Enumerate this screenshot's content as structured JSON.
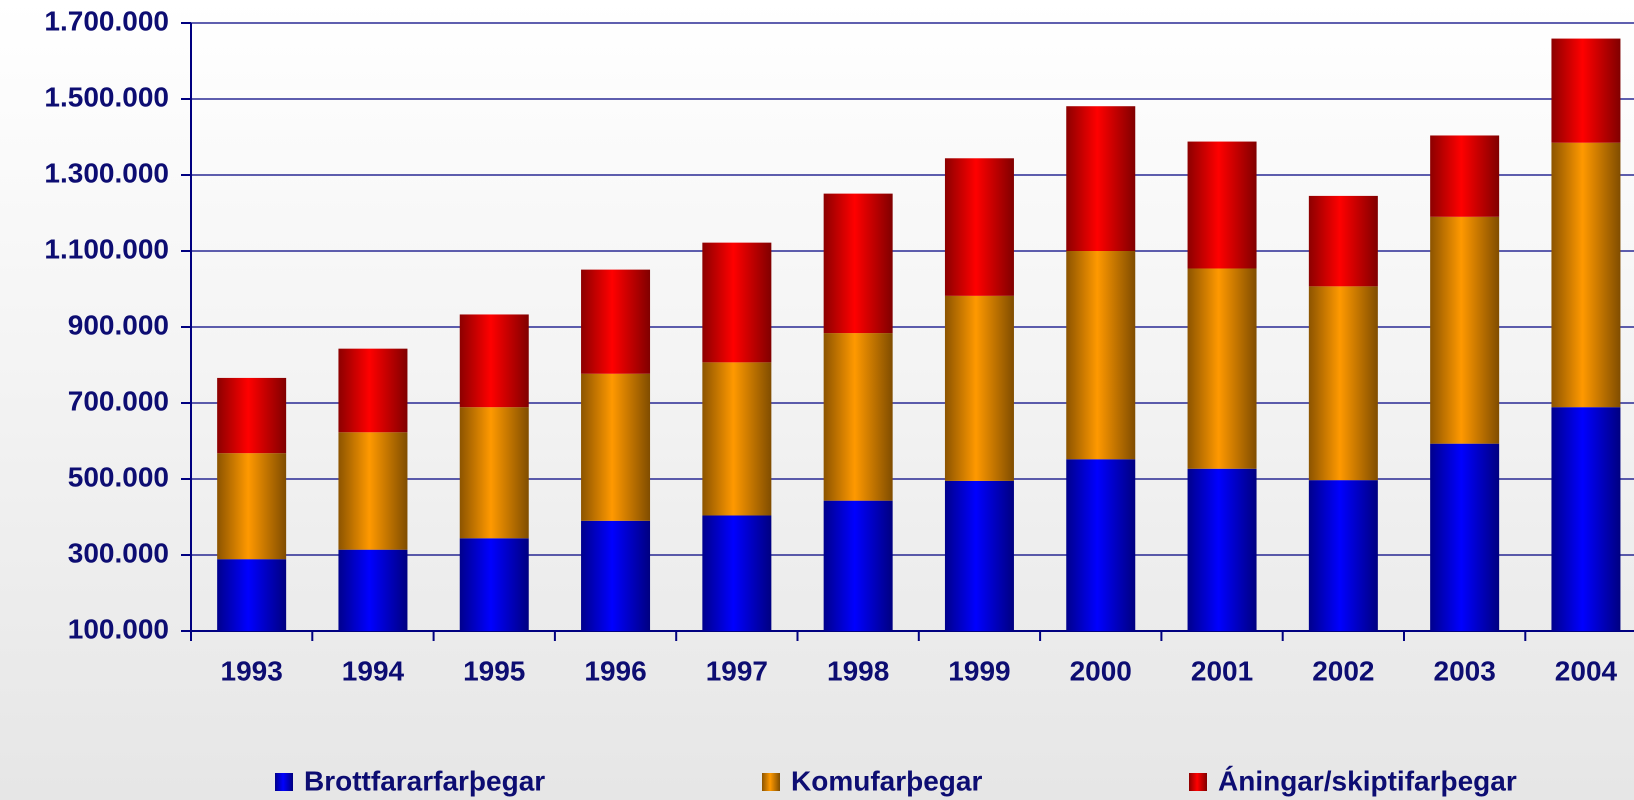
{
  "chart_data": {
    "type": "stacked_bar",
    "categories": [
      "1993",
      "1994",
      "1995",
      "1996",
      "1997",
      "1998",
      "1999",
      "2000",
      "2001",
      "2002",
      "2003",
      "2004"
    ],
    "series": [
      {
        "name": "Brottfararfarþegar",
        "color": "#0000ff",
        "values": [
          289000,
          314000,
          344000,
          390000,
          404000,
          443000,
          495000,
          552000,
          527000,
          497000,
          593000,
          689000
        ]
      },
      {
        "name": "Komufarþegar",
        "color": "#ff9900",
        "values": [
          279000,
          309000,
          345000,
          387000,
          403000,
          441000,
          487000,
          548000,
          527000,
          510000,
          597000,
          696000
        ]
      },
      {
        "name": "Áningar/skiptifarþegar",
        "color": "#ff0000",
        "values": [
          198000,
          220000,
          244000,
          274000,
          315000,
          367000,
          362000,
          381000,
          334000,
          238000,
          214000,
          274000
        ]
      }
    ],
    "ylim": [
      100000,
      1700000
    ],
    "yticks": [
      {
        "value": 100000,
        "label": "100.000"
      },
      {
        "value": 300000,
        "label": "300.000"
      },
      {
        "value": 500000,
        "label": "500.000"
      },
      {
        "value": 700000,
        "label": "700.000"
      },
      {
        "value": 900000,
        "label": "900.000"
      },
      {
        "value": 1100000,
        "label": "1.100.000"
      },
      {
        "value": 1300000,
        "label": "1.300.000"
      },
      {
        "value": 1500000,
        "label": "1.500.000"
      },
      {
        "value": 1700000,
        "label": "1.700.000"
      }
    ],
    "grid": true
  }
}
